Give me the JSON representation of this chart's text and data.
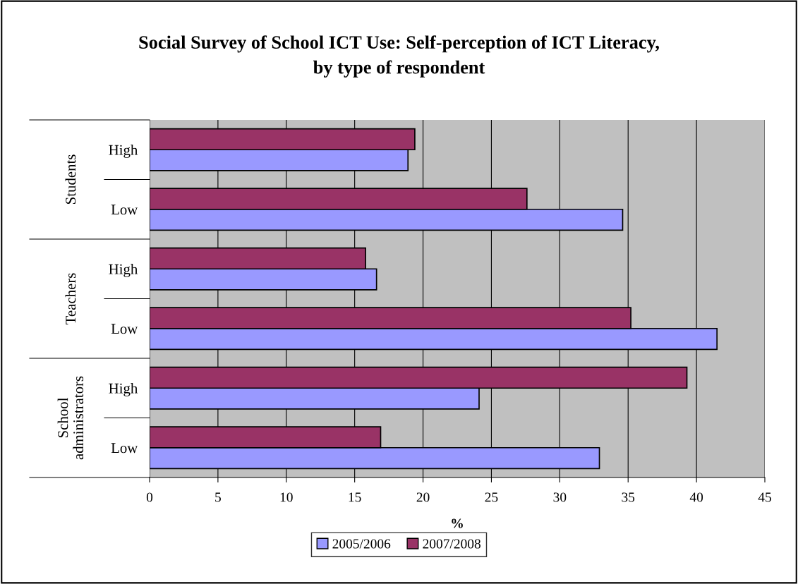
{
  "chart_data": {
    "type": "bar",
    "orientation": "horizontal",
    "title": "Social Survey of School ICT Use: Self-perception of ICT Literacy,\nby type of respondent",
    "xlabel": "%",
    "categories": [
      "High",
      "Low",
      "High",
      "Low",
      "High",
      "Low"
    ],
    "annotations": [
      "Students",
      "Teachers",
      "School\nadministrators"
    ],
    "series": [
      {
        "name": "2005/2006",
        "color": "#9999ff",
        "values": [
          18.9,
          34.6,
          16.6,
          41.5,
          24.1,
          32.9
        ]
      },
      {
        "name": "2007/2008",
        "color": "#993366",
        "values": [
          19.4,
          27.6,
          15.8,
          35.2,
          39.3,
          16.9
        ]
      }
    ],
    "xlim": [
      0,
      45
    ],
    "xticks": [
      0,
      5,
      10,
      15,
      20,
      25,
      30,
      35,
      40,
      45
    ],
    "grid": "x",
    "legend": "bottom"
  }
}
